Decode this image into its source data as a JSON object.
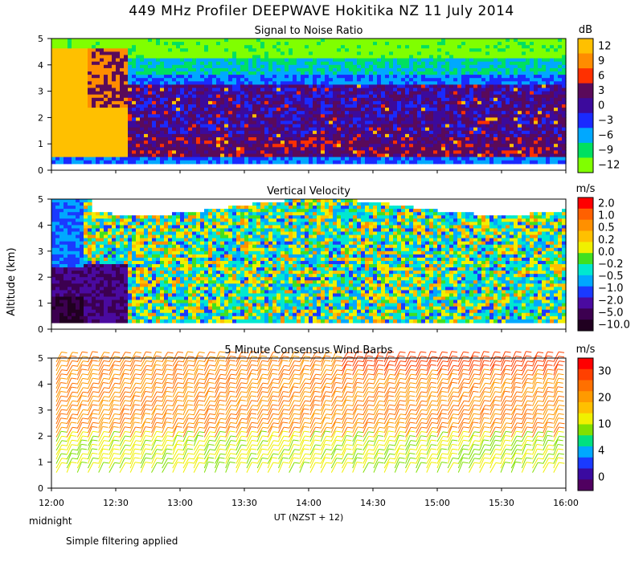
{
  "title": "449 MHz Profiler DEEPWAVE Hokitika NZ 11 July 2014",
  "ylabel": "Altitude (km)",
  "xlabel": "UT  (NZST + 12)",
  "midnight_label": "midnight",
  "footer_note": "Simple filtering applied",
  "chart_data": [
    {
      "type": "heatmap",
      "title": "Signal to Noise Ratio",
      "x_ticks": [
        "12:00",
        "12:30",
        "13:00",
        "13:30",
        "14:00",
        "14:30",
        "15:00",
        "15:30",
        "16:00"
      ],
      "y_ticks": [
        "0",
        "1",
        "2",
        "3",
        "4",
        "5"
      ],
      "ylim": [
        0,
        5
      ],
      "xlim": [
        "12:00",
        "16:00"
      ],
      "colorbar": {
        "unit": "dB",
        "labels": [
          "12",
          "9",
          "6",
          "3",
          "0",
          "−3",
          "−6",
          "−9",
          "−12"
        ],
        "colors": [
          "#ffc000",
          "#ff8c00",
          "#ff3000",
          "#5a0a5a",
          "#3c0a9c",
          "#1a2aff",
          "#00a8ff",
          "#00e060",
          "#80ff00"
        ]
      }
    },
    {
      "type": "heatmap",
      "title": "Vertical Velocity",
      "x_ticks": [
        "12:00",
        "12:30",
        "13:00",
        "13:30",
        "14:00",
        "14:30",
        "15:00",
        "15:30",
        "16:00"
      ],
      "y_ticks": [
        "0",
        "1",
        "2",
        "3",
        "4",
        "5"
      ],
      "ylim": [
        0,
        5
      ],
      "xlim": [
        "12:00",
        "16:00"
      ],
      "colorbar": {
        "unit": "m/s",
        "labels": [
          "2.0",
          "1.0",
          "0.5",
          "0.2",
          "0.0",
          "−0.2",
          "−0.5",
          "−1.0",
          "−2.0",
          "−5.0",
          "−10.0"
        ],
        "colors": [
          "#ff0000",
          "#ff6000",
          "#ff9000",
          "#ffc000",
          "#f0f000",
          "#40e020",
          "#00e8d0",
          "#00a8ff",
          "#1a3aff",
          "#4a0aa0",
          "#3c0050",
          "#200020"
        ]
      }
    },
    {
      "type": "barbs",
      "title": "5 Minute Consensus Wind Barbs",
      "x_ticks": [
        "12:00",
        "12:30",
        "13:00",
        "13:30",
        "14:00",
        "14:30",
        "15:00",
        "15:30",
        "16:00"
      ],
      "y_ticks": [
        "0",
        "1",
        "2",
        "3",
        "4",
        "5"
      ],
      "ylim": [
        0,
        5
      ],
      "xlim": [
        "12:00",
        "16:00"
      ],
      "colorbar": {
        "unit": "m/s",
        "labels": [
          "30",
          "20",
          "10",
          "4",
          "0"
        ],
        "colors": [
          "#ff0000",
          "#ff4000",
          "#ff7000",
          "#ff9a00",
          "#ffc000",
          "#f0f000",
          "#80e000",
          "#00e080",
          "#00a8ff",
          "#1a3aff",
          "#3a0aa0",
          "#500060"
        ]
      }
    }
  ]
}
